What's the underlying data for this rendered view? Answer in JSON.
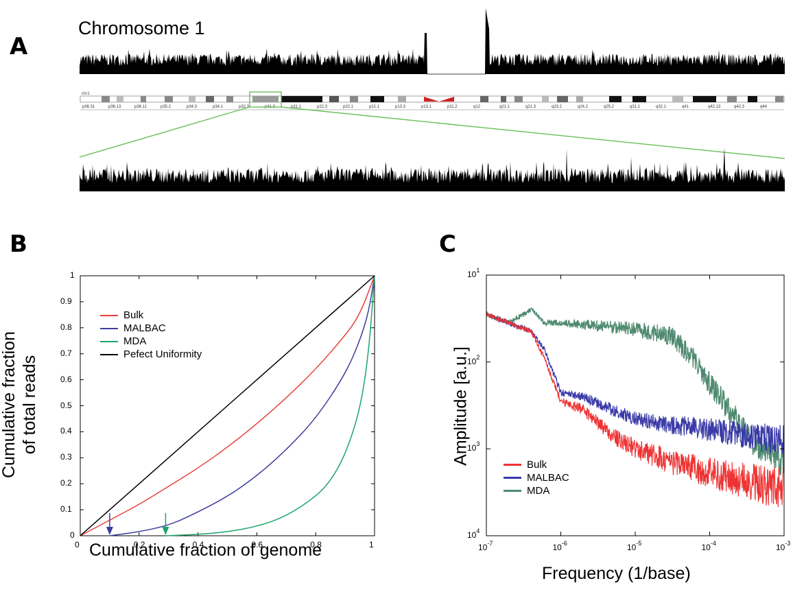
{
  "panels": {
    "a": {
      "letter": "A",
      "title": "Chromosome 1",
      "band_labels": [
        "p36.31",
        "p36.13",
        "p36.11",
        "p35.2",
        "p34.3",
        "p34.1",
        "p32.3",
        "p31.3",
        "p31.1",
        "p22.3",
        "p22.1",
        "p21.1",
        "p13.3",
        "p13.1",
        "p11.2",
        "q12",
        "q21.1",
        "q21.3",
        "q23.2",
        "q24.2",
        "q25.2",
        "q31.1",
        "q32.1",
        "q41",
        "q42.13",
        "q42.3",
        "q44"
      ],
      "ideogram_label": "chr1"
    },
    "b": {
      "letter": "B"
    },
    "c": {
      "letter": "C"
    }
  },
  "chart_data": [
    {
      "type": "line",
      "panel": "B",
      "xlabel": "Cumulative fraction of genome",
      "ylabel_line1": "Cumulative fraction",
      "ylabel_line2": "of total reads",
      "xlim": [
        0,
        1
      ],
      "ylim": [
        0,
        1
      ],
      "x_ticks": [
        "0",
        "0.2",
        "0.4",
        "0.6",
        "0.8",
        "1"
      ],
      "y_ticks": [
        "0",
        "0.1",
        "0.2",
        "0.3",
        "0.4",
        "0.5",
        "0.6",
        "0.7",
        "0.8",
        "0.9",
        "1"
      ],
      "series": [
        {
          "name": "Bulk",
          "color": "#e8413a",
          "x": [
            0,
            0.1,
            0.2,
            0.3,
            0.4,
            0.5,
            0.6,
            0.7,
            0.8,
            0.9,
            0.95,
            1
          ],
          "y": [
            0,
            0.06,
            0.12,
            0.19,
            0.26,
            0.34,
            0.43,
            0.53,
            0.64,
            0.77,
            0.85,
            1
          ]
        },
        {
          "name": "MALBAC",
          "color": "#3c3c9c",
          "x": [
            0.1,
            0.2,
            0.3,
            0.38,
            0.5,
            0.6,
            0.7,
            0.8,
            0.9,
            0.95,
            0.98,
            1
          ],
          "y": [
            0,
            0.015,
            0.04,
            0.08,
            0.15,
            0.23,
            0.33,
            0.45,
            0.62,
            0.75,
            0.86,
            1
          ]
        },
        {
          "name": "MDA",
          "color": "#1aa56a",
          "x": [
            0.29,
            0.4,
            0.5,
            0.6,
            0.7,
            0.8,
            0.85,
            0.9,
            0.95,
            0.98,
            1
          ],
          "y": [
            0,
            0.005,
            0.015,
            0.035,
            0.075,
            0.15,
            0.21,
            0.31,
            0.48,
            0.7,
            1
          ]
        },
        {
          "name": "Pefect Uniformity",
          "color": "#000000",
          "x": [
            0,
            1
          ],
          "y": [
            0,
            1
          ]
        }
      ],
      "annotations": [
        {
          "type": "arrow",
          "x": 0.1,
          "color": "#3c3c9c"
        },
        {
          "type": "arrow",
          "x": 0.29,
          "color": "#1aa56a"
        }
      ]
    },
    {
      "type": "line",
      "panel": "C",
      "xlabel": "Frequency (1/base)",
      "ylabel": "Amplitude [a.u.]",
      "xscale": "log",
      "yscale": "log",
      "xlim": [
        1e-07,
        0.001
      ],
      "x_ticks": [
        {
          "base": "10",
          "exp": "-7"
        },
        {
          "base": "10",
          "exp": "-6"
        },
        {
          "base": "10",
          "exp": "-5"
        },
        {
          "base": "10",
          "exp": "-4"
        },
        {
          "base": "10",
          "exp": "-3"
        }
      ],
      "y_ticks": [
        {
          "base": "10",
          "exp": "1"
        },
        {
          "base": "10",
          "exp": "2"
        },
        {
          "base": "10",
          "exp": "3"
        },
        {
          "base": "10",
          "exp": "4"
        }
      ],
      "series": [
        {
          "name": "Bulk",
          "color": "#ee3333",
          "x": [
            1e-07,
            2e-07,
            4e-07,
            6e-07,
            1e-06,
            2e-06,
            5e-06,
            1e-05,
            3e-05,
            0.0001,
            0.0003,
            0.001
          ],
          "amp_exp": [
            1.45,
            1.55,
            1.65,
            1.95,
            2.45,
            2.55,
            2.85,
            3.0,
            3.15,
            3.28,
            3.38,
            3.45
          ]
        },
        {
          "name": "MALBAC",
          "color": "#3a3aa8",
          "x": [
            1e-07,
            2e-07,
            4e-07,
            6e-07,
            1e-06,
            2e-06,
            5e-06,
            1e-05,
            3e-05,
            0.0001,
            0.0003,
            0.001
          ],
          "amp_exp": [
            1.45,
            1.55,
            1.65,
            1.85,
            2.35,
            2.4,
            2.55,
            2.65,
            2.72,
            2.78,
            2.85,
            2.9
          ]
        },
        {
          "name": "MDA",
          "color": "#4f8a70",
          "x": [
            1e-07,
            2e-07,
            4e-07,
            6e-07,
            1e-06,
            3e-06,
            1e-05,
            3e-05,
            6e-05,
            0.0001,
            0.0002,
            0.0004,
            0.001
          ],
          "amp_exp": [
            1.45,
            1.55,
            1.4,
            1.55,
            1.55,
            1.58,
            1.62,
            1.7,
            1.95,
            2.25,
            2.6,
            2.95,
            3.15
          ]
        }
      ]
    }
  ]
}
